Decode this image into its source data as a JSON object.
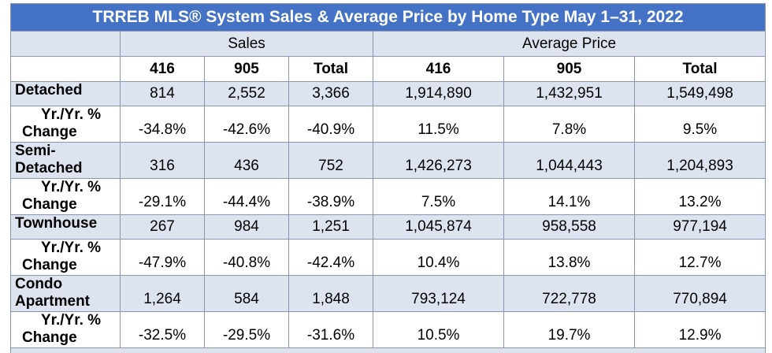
{
  "title": "TRREB MLS® System Sales & Average Price by Home Type May 1–31, 2022",
  "groups": {
    "sales": "Sales",
    "avg_price": "Average Price"
  },
  "columns": [
    "416",
    "905",
    "Total",
    "416",
    "905",
    "Total"
  ],
  "rows": [
    {
      "label_line1": "Detached",
      "label_line2": "",
      "values": [
        "814",
        "2,552",
        "3,366",
        "1,914,890",
        "1,432,951",
        "1,549,498"
      ]
    },
    {
      "label_line1": "Yr./Yr. %",
      "label_line2": "Change",
      "values": [
        "-34.8%",
        "-42.6%",
        "-40.9%",
        "11.5%",
        "7.8%",
        "9.5%"
      ]
    },
    {
      "label_line1": "Semi-",
      "label_line2": "Detached",
      "values": [
        "316",
        "436",
        "752",
        "1,426,273",
        "1,044,443",
        "1,204,893"
      ]
    },
    {
      "label_line1": "Yr./Yr. %",
      "label_line2": "Change",
      "values": [
        "-29.1%",
        "-44.4%",
        "-38.9%",
        "7.5%",
        "14.1%",
        "13.2%"
      ]
    },
    {
      "label_line1": "Townhouse",
      "label_line2": "",
      "values": [
        "267",
        "984",
        "1,251",
        "1,045,874",
        "958,558",
        "977,194"
      ]
    },
    {
      "label_line1": "Yr./Yr. %",
      "label_line2": "Change",
      "values": [
        "-47.9%",
        "-40.8%",
        "-42.4%",
        "10.4%",
        "13.8%",
        "12.7%"
      ]
    },
    {
      "label_line1": "Condo",
      "label_line2": "Apartment",
      "values": [
        "1,264",
        "584",
        "1,848",
        "793,124",
        "722,778",
        "770,894"
      ]
    },
    {
      "label_line1": "Yr./Yr. %",
      "label_line2": "Change",
      "values": [
        "-32.5%",
        "-29.5%",
        "-31.6%",
        "10.5%",
        "19.7%",
        "12.9%"
      ]
    }
  ]
}
